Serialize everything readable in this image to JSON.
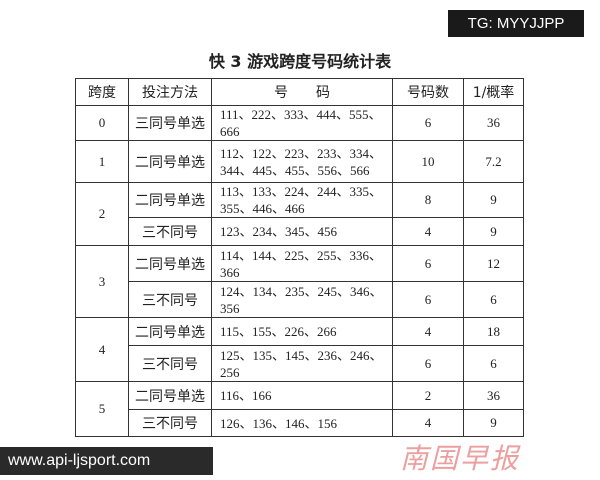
{
  "title": "快 3 游戏跨度号码统计表",
  "headers": [
    "跨度",
    "投注方法",
    "号　　码",
    "号码数",
    "1/概率"
  ],
  "rows": [
    {
      "span": "0",
      "method": "三同号单选",
      "numbers": "111、222、333、444、555、666",
      "count": "6",
      "odds": "36"
    },
    {
      "span": "1",
      "method": "二同号单选",
      "numbers": "112、122、223、233、334、344、445、455、556、566",
      "count": "10",
      "odds": "7.2"
    },
    {
      "span": "2",
      "method": "二同号单选",
      "numbers": "113、133、224、244、335、355、446、466",
      "count": "8",
      "odds": "9"
    },
    {
      "span": "2",
      "method": "三不同号",
      "numbers": "123、234、345、456",
      "count": "4",
      "odds": "9"
    },
    {
      "span": "3",
      "method": "二同号单选",
      "numbers": "114、144、225、255、336、366",
      "count": "6",
      "odds": "12"
    },
    {
      "span": "3",
      "method": "三不同号",
      "numbers": "124、134、235、245、346、356",
      "count": "6",
      "odds": "6"
    },
    {
      "span": "4",
      "method": "二同号单选",
      "numbers": "115、155、226、266",
      "count": "4",
      "odds": "18"
    },
    {
      "span": "4",
      "method": "三不同号",
      "numbers": "125、135、145、236、246、256",
      "count": "6",
      "odds": "6"
    },
    {
      "span": "5",
      "method": "二同号单选",
      "numbers": "116、166",
      "count": "2",
      "odds": "36"
    },
    {
      "span": "5",
      "method": "三不同号",
      "numbers": "126、136、146、156",
      "count": "4",
      "odds": "9"
    }
  ],
  "watermarks": {
    "tg": "TG: MYYJJPP",
    "url": "www.api-ljsport.com",
    "logo": "南国早报"
  }
}
